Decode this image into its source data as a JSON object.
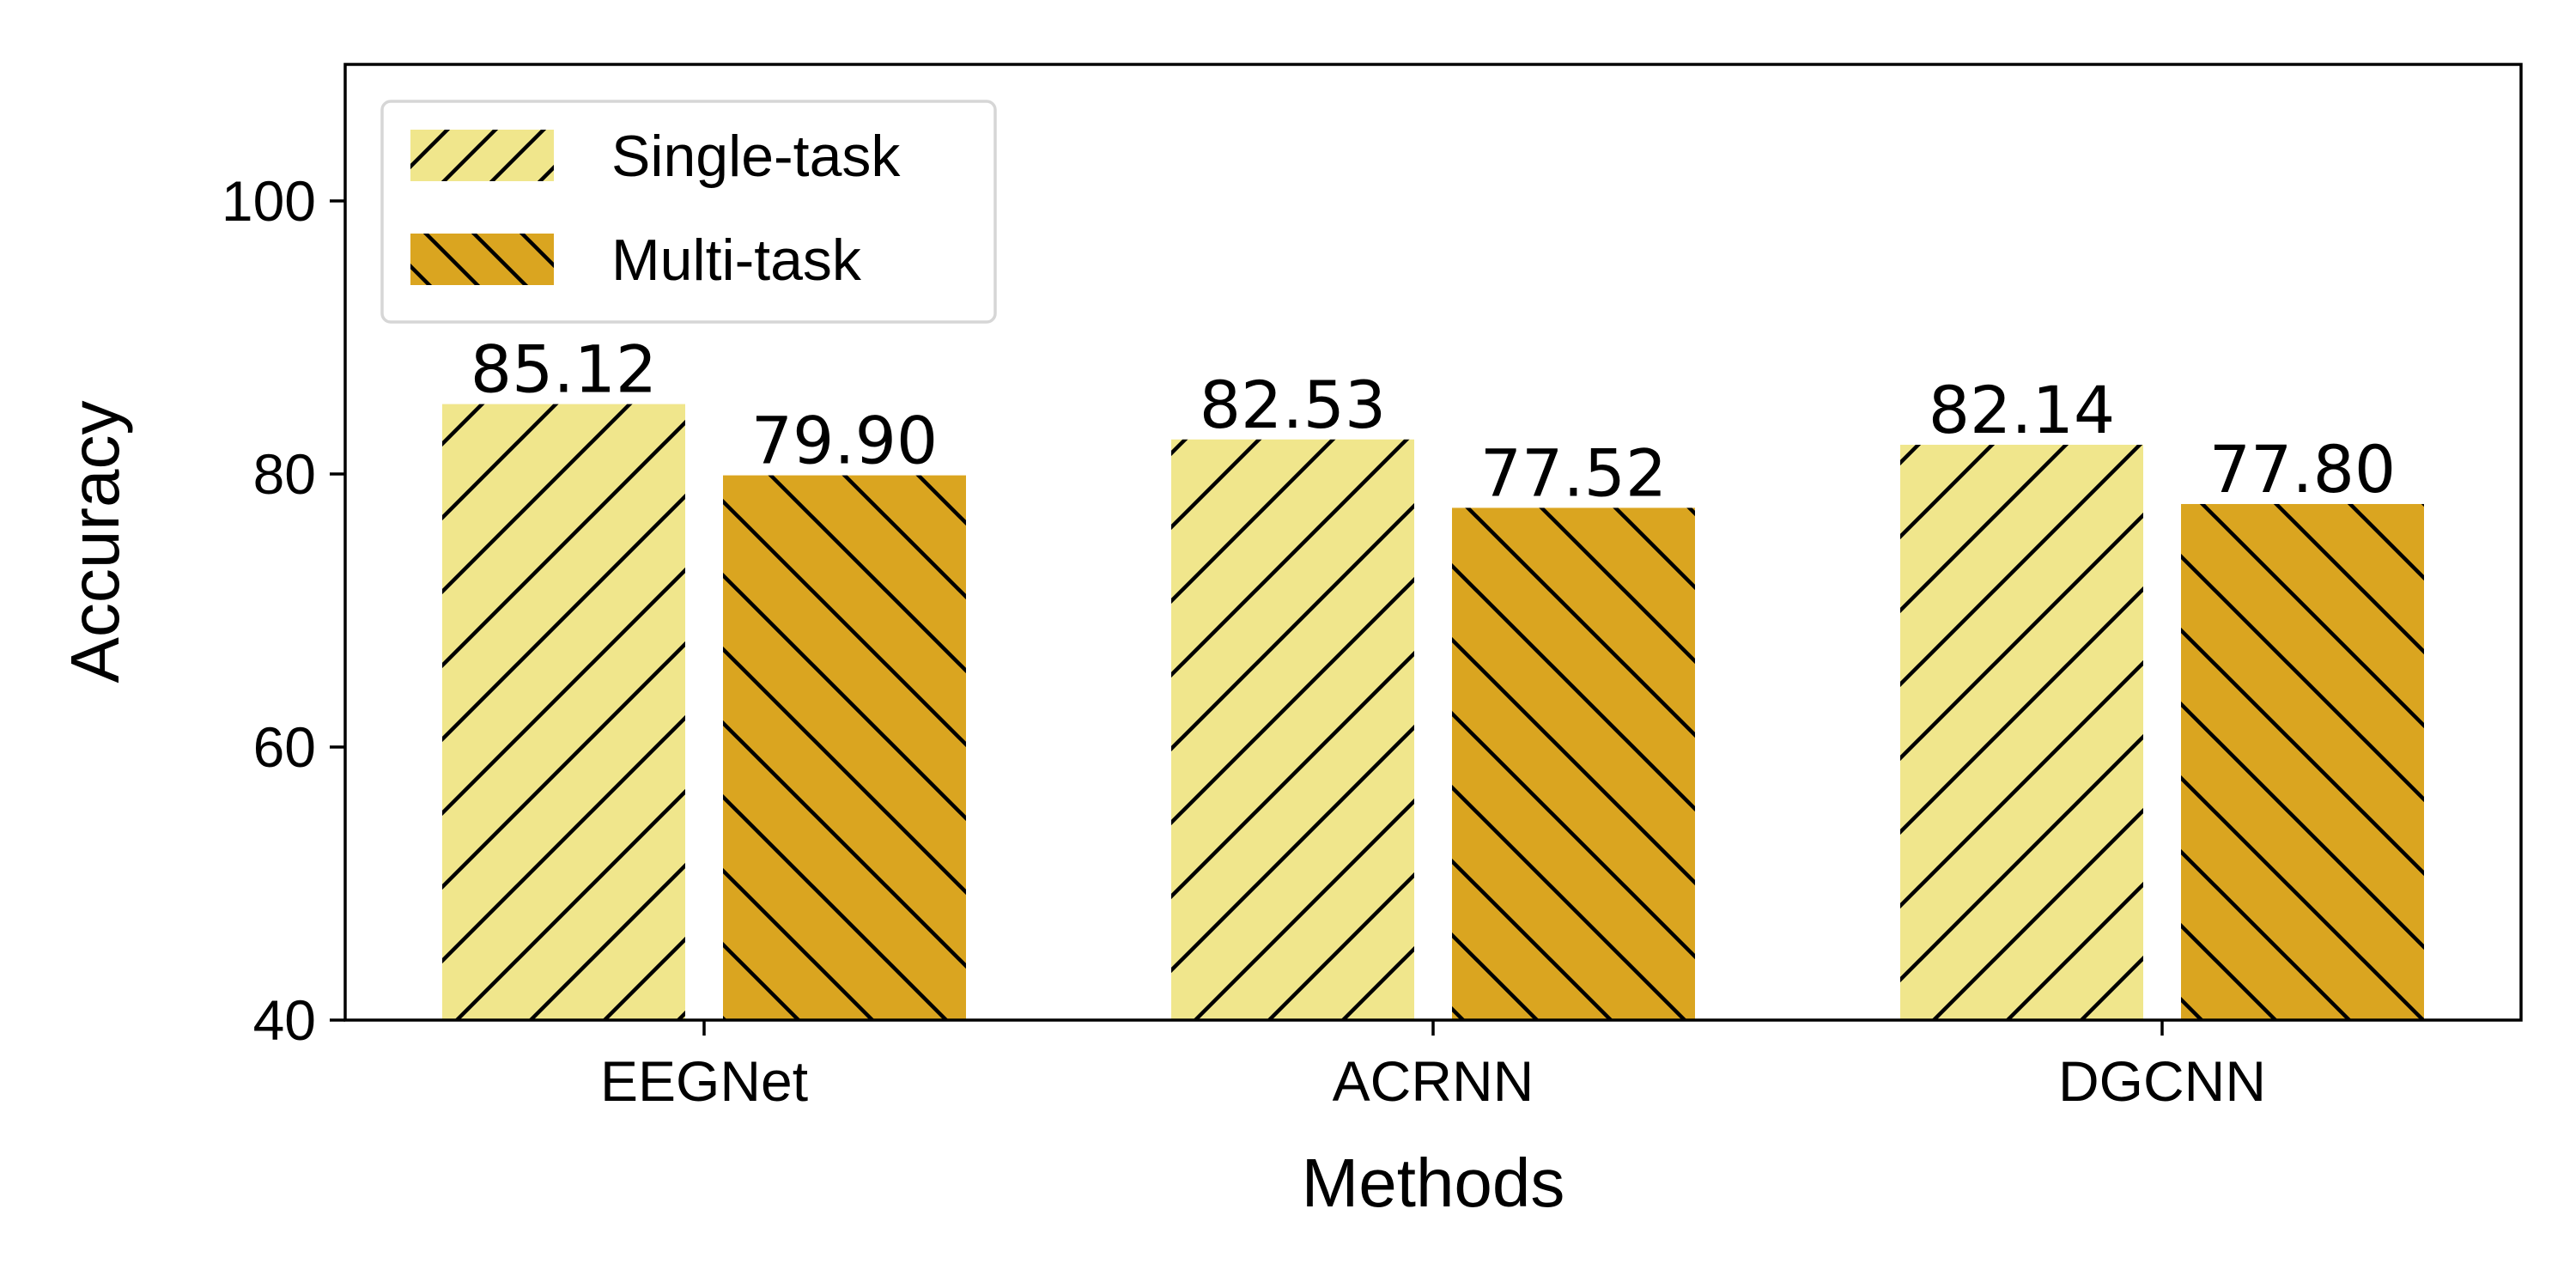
{
  "chart_data": {
    "type": "bar",
    "categories": [
      "EEGNet",
      "ACRNN",
      "DGCNN"
    ],
    "series": [
      {
        "name": "Single-task",
        "values": [
          85.12,
          82.53,
          82.14
        ],
        "labels": [
          "85.12",
          "82.53",
          "82.14"
        ],
        "color": "#F0E68C",
        "hatch": "forward-diagonal"
      },
      {
        "name": "Multi-task",
        "values": [
          79.9,
          77.52,
          77.8
        ],
        "labels": [
          "79.90",
          "77.52",
          "77.80"
        ],
        "color": "#DAA520",
        "hatch": "back-diagonal"
      }
    ],
    "xlabel": "Methods",
    "ylabel": "Accuracy",
    "ylim": [
      40,
      110
    ],
    "yticks": [
      40,
      60,
      80,
      100
    ],
    "grid": false,
    "legend_position": "top-left"
  }
}
